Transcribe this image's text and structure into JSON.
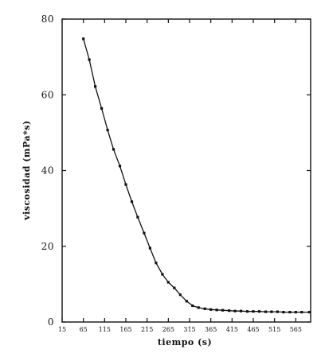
{
  "chart_data": {
    "type": "line",
    "title": "",
    "xlabel": "tiempo (s)",
    "ylabel": "viscosidad (mPa*s)",
    "xlim": [
      15,
      600
    ],
    "ylim": [
      0,
      80
    ],
    "grid": false,
    "x_tick_labels": [
      "15",
      "65",
      "115",
      "165",
      "215",
      "265",
      "315",
      "365",
      "415",
      "465",
      "515",
      "565"
    ],
    "y_tick_labels": [
      "0",
      "20",
      "40",
      "60",
      "80"
    ],
    "series": [
      {
        "x": [
          65,
          79,
          93,
          108,
          122,
          136,
          151,
          165,
          179,
          193,
          208,
          222,
          236,
          251,
          265,
          279,
          293,
          308,
          322,
          336,
          351,
          365,
          379,
          393,
          408,
          422,
          436,
          451,
          465,
          479,
          494,
          508,
          522,
          536,
          551,
          565,
          579,
          597
        ],
        "y": [
          74.8,
          69.3,
          62.2,
          56.4,
          50.7,
          45.6,
          41.2,
          36.3,
          31.8,
          27.7,
          23.5,
          19.5,
          15.6,
          12.6,
          10.5,
          9.0,
          7.2,
          5.5,
          4.3,
          3.8,
          3.5,
          3.3,
          3.2,
          3.1,
          3.0,
          2.9,
          2.9,
          2.8,
          2.8,
          2.8,
          2.7,
          2.7,
          2.7,
          2.6,
          2.6,
          2.6,
          2.6,
          2.6
        ]
      }
    ]
  },
  "colors": {
    "line": "#111111",
    "axis": "#111111",
    "background": "#ffffff"
  }
}
